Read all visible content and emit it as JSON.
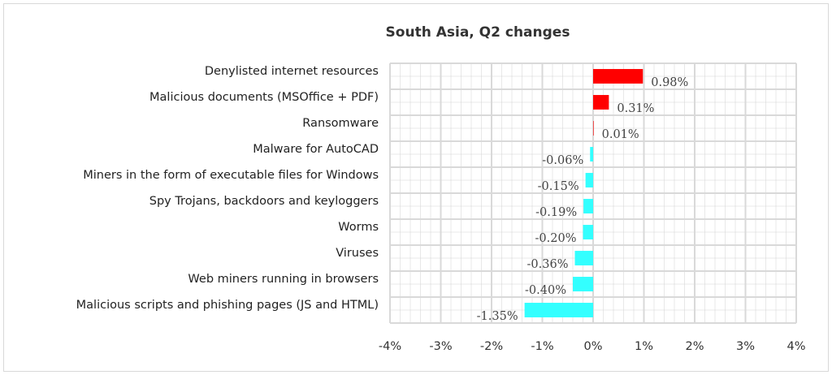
{
  "chart_data": {
    "type": "bar",
    "orientation": "horizontal",
    "title": "South Asia, Q2 changes",
    "categories": [
      "Denylisted internet resources",
      "Malicious documents (MSOffice + PDF)",
      "Ransomware",
      "Malware for AutoCAD",
      "Miners in the form of executable files for Windows",
      "Spy Trojans, backdoors and keyloggers",
      "Worms",
      "Viruses",
      "Web miners running in browsers",
      "Malicious scripts and phishing pages (JS and HTML)"
    ],
    "values": [
      0.98,
      0.31,
      0.01,
      -0.06,
      -0.15,
      -0.19,
      -0.2,
      -0.36,
      -0.4,
      -1.35
    ],
    "data_labels": [
      "0.98%",
      "0.31%",
      "0.01%",
      "-0.06%",
      "-0.15%",
      "-0.19%",
      "-0.20%",
      "-0.36%",
      "-0.40%",
      "-1.35%"
    ],
    "xlim": [
      -4,
      4
    ],
    "x_ticks": [
      "-4%",
      "-3%",
      "-2%",
      "-1%",
      "0%",
      "1%",
      "2%",
      "3%",
      "4%"
    ],
    "xlabel": "",
    "ylabel": "",
    "grid": true,
    "colors": {
      "positive": "#ff0000",
      "negative": "#33ffff",
      "grid": "#d9d9d9"
    }
  }
}
